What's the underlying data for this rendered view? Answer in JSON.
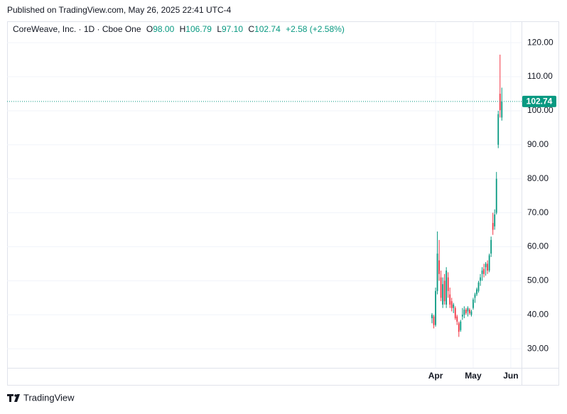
{
  "header": {
    "published": "Published on TradingView.com, May 26, 2025 22:41 UTC-4"
  },
  "legend": {
    "symbol": "CoreWeave, Inc. · 1D · Cboe One",
    "open_key": "O",
    "open": "98.00",
    "high_key": "H",
    "high": "106.79",
    "low_key": "L",
    "low": "97.10",
    "close_key": "C",
    "close": "102.74",
    "change": "+2.58 (+2.58%)"
  },
  "footer": {
    "brand": "TradingView"
  },
  "chart_data": {
    "type": "candlestick",
    "up_color": "#089981",
    "down_color": "#f23645",
    "grid": true,
    "x": [
      0,
      1,
      2,
      3,
      4,
      5,
      6,
      7,
      8,
      9,
      10,
      11,
      12,
      13,
      14,
      15,
      16,
      17,
      18,
      19,
      20,
      21,
      22,
      23,
      24,
      25,
      26,
      27,
      28,
      29,
      30,
      31,
      32,
      33,
      34,
      35,
      36,
      37,
      38,
      39
    ],
    "open": [
      39,
      39.5,
      37,
      47,
      56,
      51,
      43,
      50,
      43,
      51,
      46,
      44,
      42,
      42,
      39.5,
      37.5,
      35.5,
      39.5,
      40,
      41.5,
      41,
      41.5,
      40,
      42,
      45,
      46,
      47,
      50,
      52,
      53.5,
      54,
      55,
      53,
      58,
      67,
      66,
      70,
      90,
      105,
      98
    ],
    "high": [
      40.5,
      40,
      48,
      64.5,
      62,
      53,
      51,
      52,
      54,
      52.5,
      48,
      45,
      43.5,
      42.5,
      40,
      38,
      38.5,
      42,
      42.5,
      42,
      42.5,
      42,
      41.5,
      45,
      46.5,
      48,
      50,
      52,
      54,
      55,
      55.5,
      56,
      58,
      63,
      70,
      71,
      82,
      100,
      116.5,
      106.79
    ],
    "low": [
      37.5,
      36,
      36.5,
      46,
      50,
      44,
      42,
      43,
      42,
      45,
      42,
      41,
      40.5,
      38.5,
      37,
      33.5,
      35,
      38.5,
      39,
      40,
      39.5,
      40,
      39.5,
      41.5,
      43.5,
      45.5,
      46.5,
      48.5,
      50,
      51,
      51.5,
      52,
      52.5,
      57,
      63.5,
      65,
      69.5,
      89,
      98,
      97.1
    ],
    "close": [
      40,
      37,
      47,
      58,
      52,
      45,
      49,
      44,
      53,
      47,
      43,
      42,
      43,
      39,
      38,
      35,
      38,
      40,
      41.5,
      40.5,
      42,
      40.5,
      41,
      44.5,
      46,
      47.5,
      49.5,
      51,
      53,
      52,
      55,
      53,
      57.5,
      62,
      65,
      69.5,
      80,
      99,
      100.16,
      102.74
    ],
    "last_price": 102.74,
    "xlim": [
      -237.3,
      50
    ],
    "xticks": [
      {
        "value": 2,
        "label": "Apr"
      },
      {
        "value": 23,
        "label": "May"
      },
      {
        "value": 44,
        "label": "Jun"
      }
    ],
    "ylim": [
      24.4,
      126.3
    ],
    "yticks": [
      {
        "value": 30,
        "label": "30.00"
      },
      {
        "value": 40,
        "label": "40.00"
      },
      {
        "value": 50,
        "label": "50.00"
      },
      {
        "value": 60,
        "label": "60.00"
      },
      {
        "value": 70,
        "label": "70.00"
      },
      {
        "value": 80,
        "label": "80.00"
      },
      {
        "value": 90,
        "label": "90.00"
      },
      {
        "value": 100,
        "label": "100.00"
      },
      {
        "value": 110,
        "label": "110.00"
      },
      {
        "value": 120,
        "label": "120.00"
      }
    ]
  }
}
